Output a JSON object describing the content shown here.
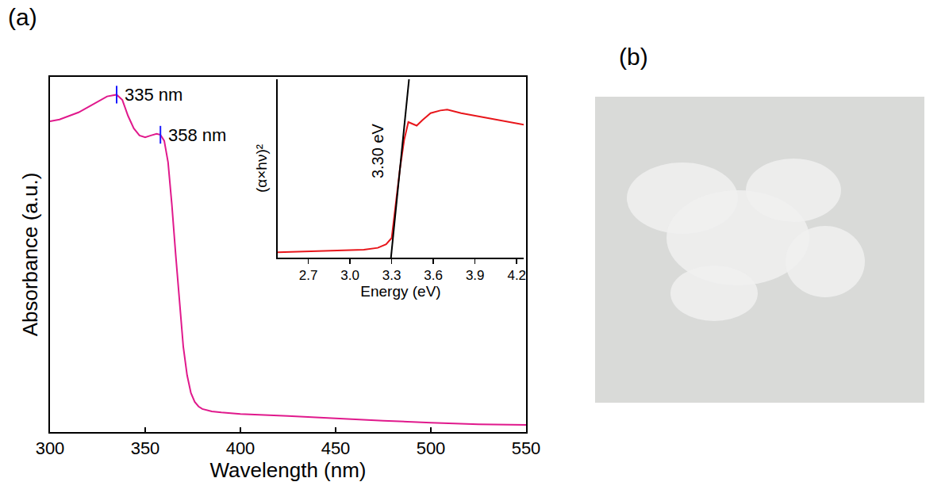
{
  "panel_labels": [
    "(a)",
    "(b)"
  ],
  "chart_data": [
    {
      "type": "line",
      "x_label": "Wavelength (nm)",
      "y_label": "Absorbance (a.u.)",
      "x": [
        300,
        305,
        310,
        315,
        320,
        325,
        330,
        335,
        338,
        341,
        344,
        347,
        350,
        353,
        356,
        358,
        360,
        362,
        364,
        366,
        368,
        370,
        372,
        374,
        376,
        378,
        380,
        385,
        390,
        400,
        425,
        450,
        475,
        500,
        525,
        550
      ],
      "series": [
        {
          "color": "#e0198c",
          "line_style": "solid",
          "values": [
            0.875,
            0.88,
            0.89,
            0.9,
            0.915,
            0.93,
            0.945,
            0.95,
            0.935,
            0.89,
            0.855,
            0.835,
            0.83,
            0.835,
            0.84,
            0.837,
            0.82,
            0.76,
            0.64,
            0.5,
            0.36,
            0.24,
            0.16,
            0.11,
            0.085,
            0.072,
            0.065,
            0.058,
            0.055,
            0.051,
            0.045,
            0.038,
            0.032,
            0.026,
            0.022,
            0.02
          ]
        }
      ],
      "xlim": [
        300,
        550
      ],
      "xticks": [
        300,
        350,
        400,
        450,
        500,
        550
      ],
      "ylim": [
        0,
        1
      ],
      "yticks": [],
      "tick_labels": "x",
      "annotations": [
        {
          "text": "335 nm",
          "x": 335,
          "y": 0.95
        },
        {
          "text": "358 nm",
          "x": 358,
          "y": 0.837
        }
      ]
    },
    {
      "type": "line",
      "x_label": "Energy (eV)",
      "y_label": "(α×hν)²",
      "x": [
        2.48,
        2.7,
        2.9,
        3.1,
        3.2,
        3.26,
        3.3,
        3.33,
        3.36,
        3.39,
        3.42,
        3.45,
        3.48,
        3.52,
        3.58,
        3.65,
        3.7,
        3.8,
        3.9,
        4.0,
        4.1,
        4.25
      ],
      "series": [
        {
          "color": "#e8161b",
          "line_style": "solid",
          "values": [
            0.03,
            0.035,
            0.04,
            0.045,
            0.055,
            0.075,
            0.11,
            0.3,
            0.5,
            0.66,
            0.76,
            0.75,
            0.74,
            0.77,
            0.81,
            0.825,
            0.83,
            0.81,
            0.795,
            0.78,
            0.765,
            0.745
          ]
        },
        {
          "color": "#000000",
          "line_style": "solid",
          "x": [
            3.295,
            3.425
          ],
          "values": [
            0,
            1.0
          ]
        }
      ],
      "xlim": [
        2.48,
        4.25
      ],
      "xticks": [
        2.7,
        {
          "value": 3,
          "label": "3.0"
        },
        3.3,
        3.6,
        3.9,
        4.2
      ],
      "ylim": [
        0,
        1
      ],
      "yticks": [],
      "tick_labels": "x",
      "annotations": [
        {
          "text": "3.30 eV",
          "x": 3.2,
          "y": 0.6
        }
      ]
    }
  ]
}
